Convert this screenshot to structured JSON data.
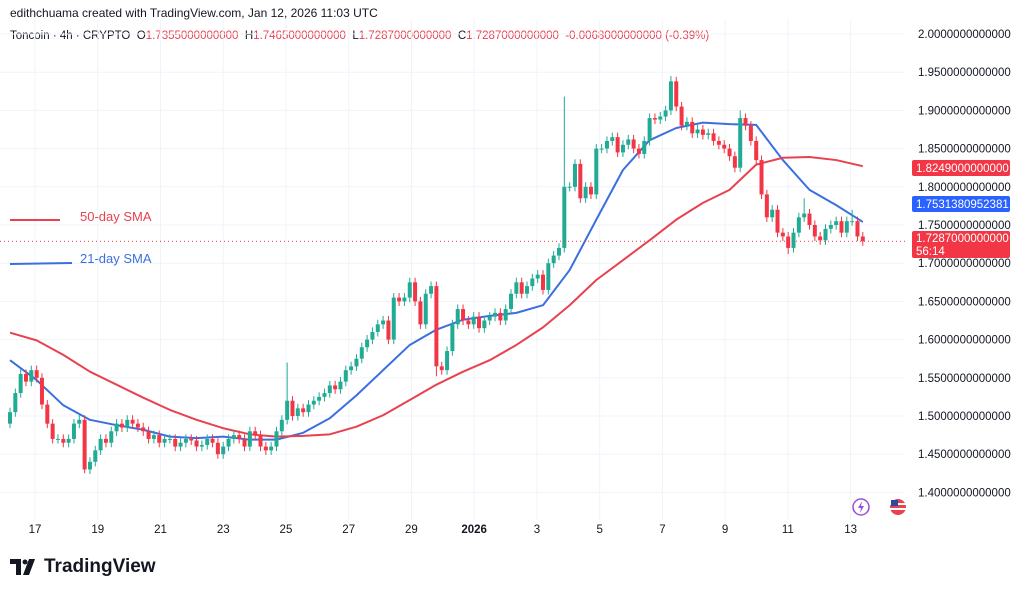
{
  "header": {
    "attribution": "edithchuama created with TradingView.com, Jan 12, 2026 11:03 UTC",
    "symbol": "Toncoin · 4h · CRYPTO",
    "o_label": "O",
    "o": "1.7355000000000",
    "h_label": "H",
    "h": "1.7465000000000",
    "l_label": "L",
    "l": "1.7287000000000",
    "c_label": "C",
    "c": "1.7287000000000",
    "change": "-0.0068000000000 (-0.39%)"
  },
  "legend": [
    {
      "label": "50-day SMA",
      "color": "#e8414f"
    },
    {
      "label": "21-day SMA",
      "color": "#3b6fe0"
    }
  ],
  "price_badges": {
    "sma50": "1.8249000000000",
    "sma21": "1.7531380952381",
    "last": "1.7287000000000",
    "countdown": "56:14"
  },
  "logo": {
    "text": "TradingView"
  },
  "colors": {
    "up": "#22ab94",
    "down": "#f23645",
    "sma50": "#e8414f",
    "sma21": "#3b6fe0"
  },
  "icons": [
    "lightning-icon",
    "flag-icon"
  ],
  "chart_data": {
    "type": "candlestick",
    "interval": "4h",
    "ylim": [
      1.37,
      2.02
    ],
    "y_ticks": [
      "2.0000000000000",
      "1.9500000000000",
      "1.9000000000000",
      "1.8500000000000",
      "1.8000000000000",
      "1.7500000000000",
      "1.7000000000000",
      "1.6500000000000",
      "1.6000000000000",
      "1.5500000000000",
      "1.5000000000000",
      "1.4500000000000",
      "1.4000000000000"
    ],
    "x_ticks": [
      "17",
      "19",
      "21",
      "23",
      "25",
      "27",
      "29",
      "2026",
      "3",
      "5",
      "7",
      "9",
      "11",
      "13"
    ],
    "grid": true,
    "first_open": 1.49,
    "closes": [
      1.505,
      1.53,
      1.555,
      1.545,
      1.56,
      1.55,
      1.515,
      1.49,
      1.47,
      1.47,
      1.465,
      1.47,
      1.49,
      1.495,
      1.43,
      1.44,
      1.455,
      1.47,
      1.465,
      1.48,
      1.49,
      1.485,
      1.495,
      1.49,
      1.485,
      1.48,
      1.47,
      1.475,
      1.465,
      1.47,
      1.47,
      1.46,
      1.465,
      1.47,
      1.468,
      1.46,
      1.462,
      1.47,
      1.465,
      1.45,
      1.46,
      1.47,
      1.475,
      1.47,
      1.46,
      1.48,
      1.475,
      1.46,
      1.455,
      1.46,
      1.48,
      1.495,
      1.52,
      1.5,
      1.51,
      1.505,
      1.515,
      1.52,
      1.525,
      1.53,
      1.54,
      1.535,
      1.545,
      1.56,
      1.565,
      1.575,
      1.59,
      1.6,
      1.61,
      1.62,
      1.625,
      1.6,
      1.655,
      1.65,
      1.655,
      1.675,
      1.65,
      1.62,
      1.66,
      1.67,
      1.565,
      1.56,
      1.585,
      1.62,
      1.64,
      1.625,
      1.62,
      1.63,
      1.615,
      1.625,
      1.63,
      1.635,
      1.625,
      1.64,
      1.66,
      1.675,
      1.66,
      1.67,
      1.68,
      1.685,
      1.665,
      1.7,
      1.71,
      1.72,
      1.8,
      1.8,
      1.83,
      1.785,
      1.8,
      1.79,
      1.85,
      1.85,
      1.86,
      1.865,
      1.845,
      1.855,
      1.862,
      1.85,
      1.843,
      1.86,
      1.89,
      1.888,
      1.892,
      1.9,
      1.938,
      1.905,
      1.88,
      1.885,
      1.87,
      1.875,
      1.868,
      1.87,
      1.86,
      1.855,
      1.85,
      1.84,
      1.825,
      1.89,
      1.88,
      1.86,
      1.835,
      1.79,
      1.76,
      1.77,
      1.74,
      1.735,
      1.72,
      1.74,
      1.76,
      1.765,
      1.75,
      1.735,
      1.73,
      1.745,
      1.75,
      1.755,
      1.74,
      1.755,
      1.755,
      1.735,
      1.7287
    ],
    "notable_highs": {
      "52": 1.57,
      "104": 1.918,
      "124": 1.945,
      "137": 1.9,
      "149": 1.785,
      "158": 1.77
    },
    "notable_lows": {
      "14": 1.425,
      "80": 1.552,
      "146": 1.712
    },
    "series": [
      {
        "name": "21-day SMA",
        "sample_every": 5,
        "values": [
          1.573,
          1.547,
          1.514,
          1.495,
          1.488,
          1.482,
          1.473,
          1.471,
          1.473,
          1.469,
          1.469,
          1.478,
          1.497,
          1.527,
          1.56,
          1.593,
          1.613,
          1.626,
          1.631,
          1.635,
          1.645,
          1.691,
          1.757,
          1.822,
          1.861,
          1.877,
          1.884,
          1.882,
          1.881,
          1.835,
          1.796,
          1.776,
          1.754
        ]
      },
      {
        "name": "50-day SMA",
        "sample_every": 5,
        "values": [
          1.609,
          1.599,
          1.58,
          1.558,
          1.541,
          1.524,
          1.508,
          1.495,
          1.484,
          1.476,
          1.473,
          1.474,
          1.476,
          1.486,
          1.501,
          1.521,
          1.541,
          1.558,
          1.573,
          1.593,
          1.616,
          1.645,
          1.678,
          1.704,
          1.73,
          1.757,
          1.779,
          1.796,
          1.829,
          1.838,
          1.839,
          1.835,
          1.827
        ]
      }
    ]
  }
}
